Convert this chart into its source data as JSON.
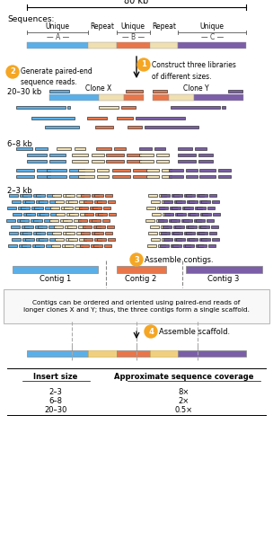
{
  "colors": {
    "blue": "#5BAFE8",
    "cream": "#F0DFB0",
    "orange": "#E8764A",
    "purple": "#7B5EA7",
    "orange_circle": "#F5A623",
    "yellow_dash": "#F0D080"
  },
  "kb_label": "80 kb",
  "step1_text": "Construct three libraries\nof different sizes.",
  "step2_text": "Generate paired-end\nsequence reads.",
  "step3_text": "Assemble contigs.",
  "step4_text": "Assemble scaffold.",
  "contig_labels": [
    "Contig 1",
    "Contig 2",
    "Contig 3"
  ],
  "scaffold_note": "Contigs can be ordered and oriented using paired-end reads of\nlonger clones X and Y; thus, the three contigs form a single scaffold.",
  "size_labels": [
    "20–30 kb",
    "6–8 kb",
    "2–3 kb"
  ],
  "clone_labels": [
    "Clone X",
    "Clone Y"
  ],
  "segment_labels": [
    "Unique",
    "Repeat",
    "Unique",
    "Repeat",
    "Unique"
  ],
  "coverage_header": [
    "Insert size",
    "Approximate sequence coverage"
  ],
  "coverage_data": [
    [
      "2–3",
      "8×"
    ],
    [
      "6–8",
      "2×"
    ],
    [
      "20–30",
      "0.5×"
    ]
  ]
}
